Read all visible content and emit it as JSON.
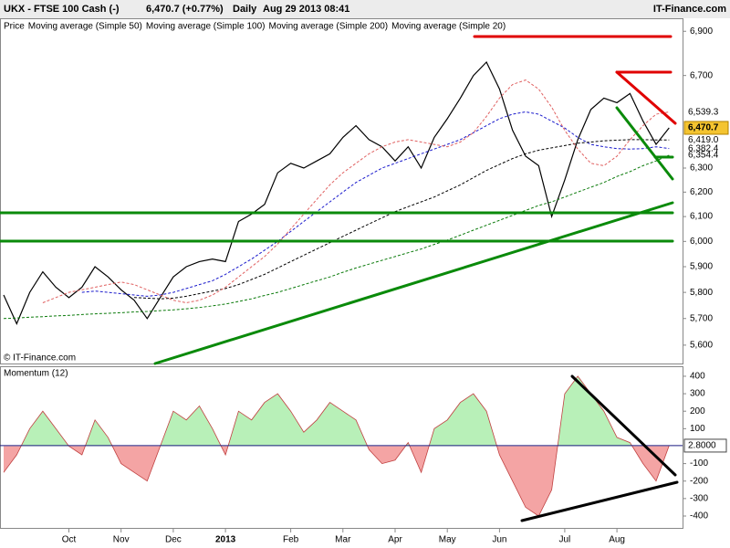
{
  "header": {
    "title": "UKX - FTSE 100 Cash (-)",
    "quote": "6,470.7 (+0.77%)",
    "period": "Daily",
    "timestamp": "Aug 29 2013 08:41",
    "site": "IT-Finance.com",
    "copyright": "© IT-Finance.com"
  },
  "chart_data": [
    {
      "type": "line",
      "log_scale": true,
      "ylim": [
        5532,
        6960
      ],
      "yticks": [
        {
          "value": 5600,
          "label": "5,600"
        },
        {
          "value": 5700,
          "label": "5,700"
        },
        {
          "value": 5800,
          "label": "5,800"
        },
        {
          "value": 5900,
          "label": "5,900"
        },
        {
          "value": 6000,
          "label": "6,000"
        },
        {
          "value": 6100,
          "label": "6,100"
        },
        {
          "value": 6200,
          "label": "6,200"
        },
        {
          "value": 6300,
          "label": "6,300"
        },
        {
          "value": 6700,
          "label": "6,700"
        },
        {
          "value": 6900,
          "label": "6,900"
        }
      ],
      "series": [
        {
          "name": "Price",
          "color": "#000000",
          "width": 1.2,
          "dash": "",
          "last_label": "6,470.7",
          "values": [
            5790,
            5680,
            5800,
            5880,
            5820,
            5780,
            5820,
            5900,
            5860,
            5810,
            5770,
            5700,
            5780,
            5860,
            5900,
            5920,
            5930,
            5920,
            6080,
            6110,
            6150,
            6280,
            6320,
            6300,
            6330,
            6360,
            6430,
            6480,
            6420,
            6390,
            6330,
            6390,
            6300,
            6430,
            6510,
            6600,
            6700,
            6760,
            6640,
            6460,
            6350,
            6310,
            6100,
            6250,
            6420,
            6550,
            6600,
            6580,
            6620,
            6500,
            6400,
            6470.7
          ]
        },
        {
          "name": "Moving average (Simple 50)",
          "color": "#1a1acc",
          "width": 1,
          "dash": "3,2",
          "last_label": "6,382.4",
          "values": [
            null,
            null,
            null,
            null,
            null,
            null,
            5800,
            5805,
            5800,
            5795,
            5790,
            5785,
            5790,
            5800,
            5815,
            5830,
            5845,
            5870,
            5900,
            5930,
            5965,
            6000,
            6040,
            6080,
            6120,
            6160,
            6200,
            6240,
            6270,
            6300,
            6320,
            6340,
            6360,
            6380,
            6400,
            6420,
            6450,
            6480,
            6510,
            6530,
            6540,
            6530,
            6500,
            6470,
            6430,
            6400,
            6390,
            6382,
            6380,
            6382,
            6390,
            6382.4
          ]
        },
        {
          "name": "Moving average (Simple 100)",
          "color": "#000000",
          "width": 1,
          "dash": "3,2",
          "last_label": "6,419.0",
          "values": [
            null,
            null,
            null,
            null,
            null,
            null,
            null,
            null,
            null,
            null,
            5780,
            5778,
            5775,
            5778,
            5785,
            5795,
            5805,
            5815,
            5830,
            5850,
            5870,
            5895,
            5920,
            5945,
            5970,
            5995,
            6020,
            6045,
            6070,
            6095,
            6120,
            6140,
            6160,
            6180,
            6205,
            6230,
            6260,
            6290,
            6315,
            6340,
            6360,
            6375,
            6385,
            6395,
            6405,
            6410,
            6415,
            6418,
            6420,
            6420,
            6419,
            6419
          ]
        },
        {
          "name": "Moving average (Simple 200)",
          "color": "#0a7a0a",
          "width": 1,
          "dash": "3,2",
          "last_label": "6,354.4",
          "values": [
            5700,
            5702,
            5705,
            5707,
            5710,
            5712,
            5715,
            5718,
            5720,
            5722,
            5725,
            5727,
            5730,
            5733,
            5737,
            5742,
            5748,
            5755,
            5765,
            5775,
            5788,
            5800,
            5815,
            5830,
            5845,
            5860,
            5878,
            5895,
            5910,
            5925,
            5940,
            5955,
            5970,
            5988,
            6005,
            6025,
            6045,
            6065,
            6085,
            6105,
            6125,
            6145,
            6160,
            6180,
            6200,
            6220,
            6240,
            6265,
            6285,
            6310,
            6330,
            6354.4
          ]
        },
        {
          "name": "Moving average (Simple 20)",
          "color": "#e06060",
          "width": 1,
          "dash": "3,2",
          "last_label": "6,539.3",
          "values": [
            null,
            null,
            null,
            5760,
            5780,
            5800,
            5810,
            5820,
            5830,
            5840,
            5830,
            5810,
            5790,
            5770,
            5760,
            5770,
            5790,
            5820,
            5860,
            5900,
            5940,
            5990,
            6050,
            6110,
            6170,
            6230,
            6280,
            6320,
            6360,
            6390,
            6410,
            6420,
            6410,
            6400,
            6390,
            6410,
            6450,
            6520,
            6600,
            6660,
            6680,
            6640,
            6560,
            6460,
            6380,
            6320,
            6310,
            6350,
            6420,
            6480,
            6530,
            6539.3
          ]
        }
      ]
    },
    {
      "type": "area",
      "title": "Momentum (12)",
      "ylim": [
        -468,
        452
      ],
      "yticks": [
        400,
        300,
        200,
        100,
        -100,
        -200,
        -300,
        -400
      ],
      "positive_color": "#b8f0b8",
      "negative_color": "#f4a4a4",
      "line_color": "#c04040",
      "last_label": "2.8000",
      "categories": [
        null,
        null,
        null,
        null,
        null,
        "Oct",
        null,
        null,
        null,
        "Nov",
        null,
        null,
        null,
        "Dec",
        null,
        null,
        null,
        "2013",
        null,
        null,
        null,
        null,
        "Feb",
        null,
        null,
        null,
        "Mar",
        null,
        null,
        null,
        "Apr",
        null,
        null,
        null,
        "May",
        null,
        null,
        null,
        "Jun",
        null,
        null,
        null,
        null,
        "Jul",
        null,
        null,
        null,
        "Aug",
        null,
        null,
        null,
        null
      ],
      "values": [
        -150,
        -50,
        100,
        200,
        100,
        0,
        -50,
        150,
        50,
        -100,
        -150,
        -200,
        0,
        200,
        150,
        230,
        100,
        -50,
        200,
        150,
        250,
        300,
        200,
        80,
        150,
        250,
        200,
        150,
        -20,
        -100,
        -80,
        20,
        -150,
        100,
        150,
        250,
        300,
        200,
        -50,
        -200,
        -350,
        -400,
        -250,
        300,
        400,
        300,
        200,
        50,
        20,
        -100,
        -200,
        2.8
      ]
    }
  ]
}
